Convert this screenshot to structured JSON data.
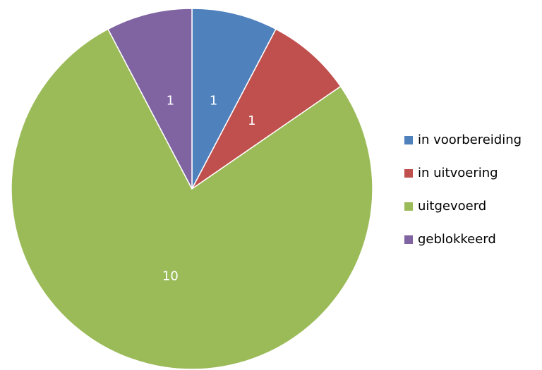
{
  "chart_data": {
    "type": "pie",
    "categories": [
      "in voorbereiding",
      "in uitvoering",
      "uitgevoerd",
      "geblokkeerd"
    ],
    "values": [
      1,
      1,
      10,
      1
    ],
    "colors": [
      "#4f81bd",
      "#c0504d",
      "#9bbb59",
      "#8064a2"
    ],
    "legend": "right"
  }
}
